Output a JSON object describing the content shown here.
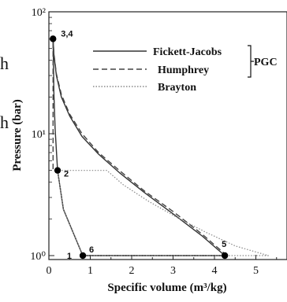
{
  "background_fragments": [
    "h",
    "h"
  ],
  "chart_data": {
    "type": "line",
    "title": "",
    "xlabel": "Specific volume (m³/kg)",
    "ylabel": "Pressure (bar)",
    "xlim": [
      0,
      5.6
    ],
    "ylim": [
      1,
      100
    ],
    "yscale": "log",
    "x_ticks": [
      "0",
      "1",
      "2",
      "3",
      "4",
      "5"
    ],
    "y_ticks": [
      "10⁰",
      "10¹",
      "10²"
    ],
    "legend": {
      "placement": "top-right",
      "bracket_label": "PGC",
      "entries": [
        "Fickett-Jacobs",
        "Humphrey",
        "Brayton"
      ]
    },
    "points": [
      {
        "label": "1",
        "x": 0.82,
        "y": 1.0
      },
      {
        "label": "6",
        "x": 0.82,
        "y": 1.0
      },
      {
        "label": "2",
        "x": 0.21,
        "y": 5.0
      },
      {
        "label": "3,4",
        "x": 0.1,
        "y": 60.0
      },
      {
        "label": "5",
        "x": 4.25,
        "y": 1.0
      }
    ],
    "series": [
      {
        "name": "Fickett-Jacobs",
        "style": "solid",
        "color": "#333333",
        "x": [
          0.82,
          0.35,
          0.21,
          0.15,
          0.12,
          0.1,
          0.12,
          0.18,
          0.3,
          0.5,
          0.8,
          1.2,
          1.7,
          2.3,
          3.0,
          3.7,
          4.25,
          0.82
        ],
        "y": [
          1.0,
          2.4,
          5.0,
          11,
          22,
          60,
          45,
          30,
          20,
          14,
          9.5,
          6.8,
          4.8,
          3.3,
          2.2,
          1.45,
          1.0,
          1.0
        ]
      },
      {
        "name": "Humphrey",
        "style": "dashed",
        "color": "#444444",
        "x": [
          0.82,
          0.35,
          0.21,
          0.1,
          0.1,
          0.12,
          0.18,
          0.3,
          0.5,
          0.8,
          1.2,
          1.7,
          2.3,
          3.0,
          3.7,
          4.3,
          0.82
        ],
        "y": [
          1.0,
          2.4,
          5.0,
          5.0,
          60,
          46,
          31,
          21,
          14.5,
          10,
          7.0,
          5.0,
          3.4,
          2.3,
          1.5,
          1.0,
          1.0
        ]
      },
      {
        "name": "Brayton",
        "style": "dotted",
        "color": "#888888",
        "x": [
          0.82,
          0.35,
          0.21,
          1.4,
          1.8,
          2.4,
          3.1,
          3.8,
          4.5,
          5.3,
          0.82
        ],
        "y": [
          1.0,
          2.4,
          5.0,
          5.0,
          3.8,
          2.8,
          2.05,
          1.55,
          1.2,
          1.0,
          1.0
        ]
      }
    ]
  }
}
